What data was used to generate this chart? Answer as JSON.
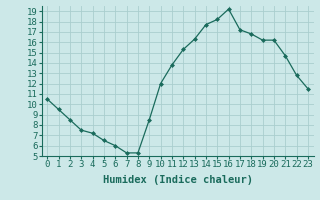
{
  "x": [
    0,
    1,
    2,
    3,
    4,
    5,
    6,
    7,
    8,
    9,
    10,
    11,
    12,
    13,
    14,
    15,
    16,
    17,
    18,
    19,
    20,
    21,
    22,
    23
  ],
  "y": [
    10.5,
    9.5,
    8.5,
    7.5,
    7.2,
    6.5,
    6.0,
    5.3,
    5.3,
    8.5,
    12.0,
    13.8,
    15.3,
    16.3,
    17.7,
    18.2,
    19.2,
    17.2,
    16.8,
    16.2,
    16.2,
    14.7,
    12.8,
    11.5
  ],
  "line_color": "#1a6b5c",
  "marker": "D",
  "marker_size": 2,
  "bg_color": "#cce8e8",
  "grid_color": "#aacece",
  "xlabel": "Humidex (Indice chaleur)",
  "ylim": [
    5,
    19.5
  ],
  "xlim": [
    -0.5,
    23.5
  ],
  "yticks": [
    5,
    6,
    7,
    8,
    9,
    10,
    11,
    12,
    13,
    14,
    15,
    16,
    17,
    18,
    19
  ],
  "xticks": [
    0,
    1,
    2,
    3,
    4,
    5,
    6,
    7,
    8,
    9,
    10,
    11,
    12,
    13,
    14,
    15,
    16,
    17,
    18,
    19,
    20,
    21,
    22,
    23
  ],
  "tick_color": "#1a6b5c",
  "label_color": "#1a6b5c",
  "font_size": 6.5,
  "xlabel_fontsize": 7.5
}
